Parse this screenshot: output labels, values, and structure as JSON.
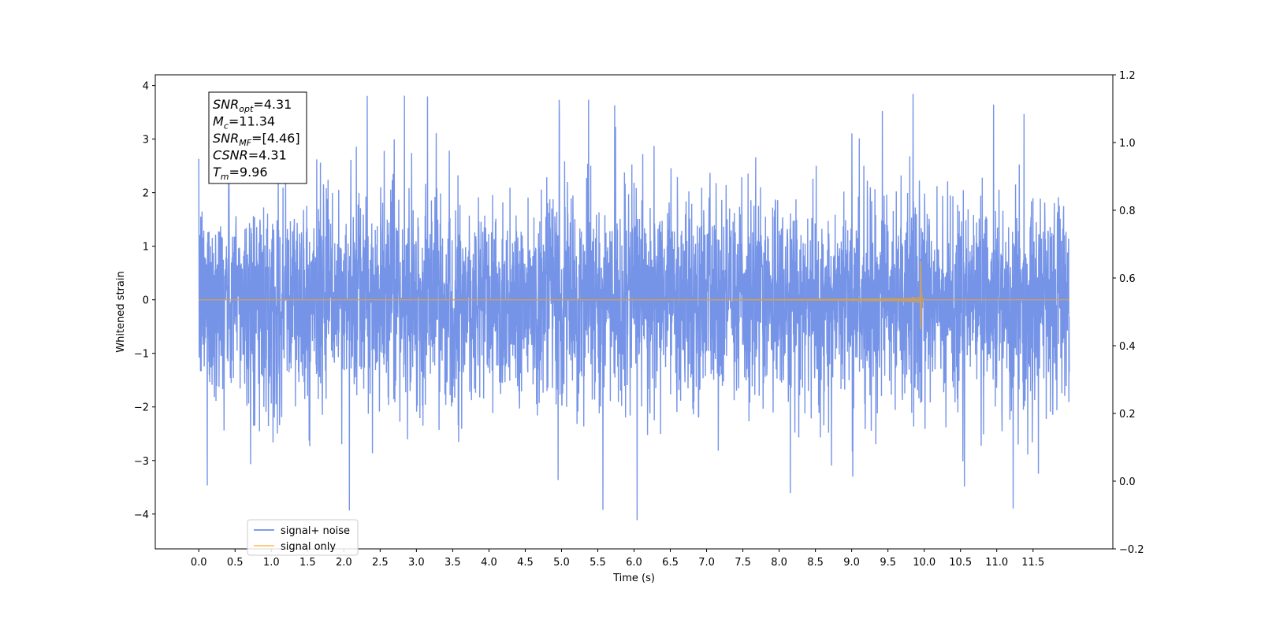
{
  "chart_data": {
    "type": "line",
    "title": "",
    "xlabel": "Time (s)",
    "ylabel": "Whitened strain",
    "xlim": [
      -0.6,
      12.6
    ],
    "ylim": [
      -4.65,
      4.2
    ],
    "y2lim": [
      -0.2,
      1.2
    ],
    "x_ticks": [
      0.0,
      0.5,
      1.0,
      1.5,
      2.0,
      2.5,
      3.0,
      3.5,
      4.0,
      4.5,
      5.0,
      5.5,
      6.0,
      6.5,
      7.0,
      7.5,
      8.0,
      8.5,
      9.0,
      9.5,
      10.0,
      10.5,
      11.0,
      11.5
    ],
    "x_tick_labels": [
      "0.0",
      "0.5",
      "1.0",
      "1.5",
      "2.0",
      "2.5",
      "3.0",
      "3.5",
      "4.0",
      "4.5",
      "5.0",
      "5.5",
      "6.0",
      "6.5",
      "7.0",
      "7.5",
      "8.0",
      "8.5",
      "9.0",
      "9.5",
      "10.0",
      "10.5",
      "11.0",
      "11.5"
    ],
    "y_ticks": [
      4,
      3,
      2,
      1,
      0,
      -1,
      -2,
      -3,
      -4
    ],
    "y_tick_labels": [
      "4",
      "3",
      "2",
      "1",
      "0",
      "−1",
      "−2",
      "−3",
      "−4"
    ],
    "y2_ticks": [
      1.2,
      1.0,
      0.8,
      0.6,
      0.4,
      0.2,
      0.0,
      -0.2
    ],
    "y2_tick_labels": [
      "1.2",
      "1.0",
      "0.8",
      "0.6",
      "0.4",
      "0.2",
      "0.0",
      "−0.2"
    ],
    "grid": false,
    "legend_position": "lower-left",
    "series": [
      {
        "name": "signal+ noise",
        "color": "#6f8ee6",
        "x_range": [
          0.0,
          12.0
        ],
        "y_range_approx": [
          -4.2,
          3.8
        ],
        "description_kind": "whitened noise plus chirp"
      },
      {
        "name": "signal only",
        "color": "#ffc46b",
        "x_range": [
          0.0,
          12.0
        ],
        "chirp_merger_time": 9.96,
        "peak_amplitude": 0.72,
        "min_amplitude": -0.55
      }
    ],
    "annotation_box": {
      "lines": [
        {
          "sym": "SNR",
          "sub": "opt",
          "value": "=4.31"
        },
        {
          "sym": "M",
          "sub": "c",
          "value": "=11.34"
        },
        {
          "sym": "SNR",
          "sub": "MF",
          "value": "=[4.46]"
        },
        {
          "sym": "CSNR",
          "sub": "",
          "value": "=4.31"
        },
        {
          "sym": "T",
          "sub": "m",
          "value": "=9.96"
        }
      ]
    }
  }
}
